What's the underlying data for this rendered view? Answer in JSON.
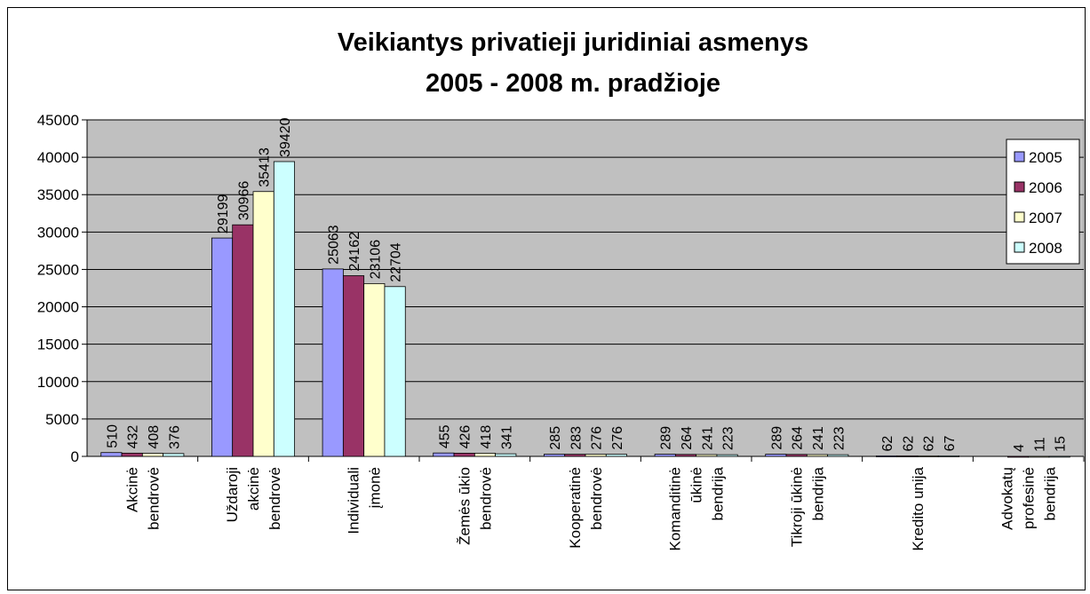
{
  "chart_data": {
    "type": "bar",
    "title": [
      "Veikiantys privatieji juridiniai asmenys",
      "2005 - 2008 m. pradžioje"
    ],
    "categories": [
      [
        "Akcinė",
        "bendrovė"
      ],
      [
        "Uždaroji",
        "akcinė",
        "bendrovė"
      ],
      [
        "Individuali",
        "įmonė"
      ],
      [
        "Žemės ūkio",
        "bendrovė"
      ],
      [
        "Kooperatinė",
        "bendrovė"
      ],
      [
        "Komanditinė",
        "ūkinė",
        "bendrija"
      ],
      [
        "Tikroji ūkinė",
        "bendrija"
      ],
      [
        "Kredito unija"
      ],
      [
        "Advokatų",
        "profesinė",
        "bendrija"
      ]
    ],
    "series": [
      {
        "name": "2005",
        "color": "#9999ff",
        "values": [
          510,
          29199,
          25063,
          455,
          285,
          289,
          289,
          62,
          null
        ]
      },
      {
        "name": "2006",
        "color": "#993366",
        "values": [
          432,
          30966,
          24162,
          426,
          283,
          264,
          264,
          62,
          4
        ]
      },
      {
        "name": "2007",
        "color": "#ffffcc",
        "values": [
          408,
          35413,
          23106,
          418,
          276,
          241,
          241,
          62,
          11
        ]
      },
      {
        "name": "2008",
        "color": "#ccffff",
        "values": [
          376,
          39420,
          22704,
          341,
          276,
          223,
          223,
          67,
          15
        ]
      }
    ],
    "ylim": [
      0,
      45000
    ],
    "yticks": [
      0,
      5000,
      10000,
      15000,
      20000,
      25000,
      30000,
      35000,
      40000,
      45000
    ],
    "grid": true,
    "legend": "right",
    "plot_background": "#c0c0c0"
  }
}
